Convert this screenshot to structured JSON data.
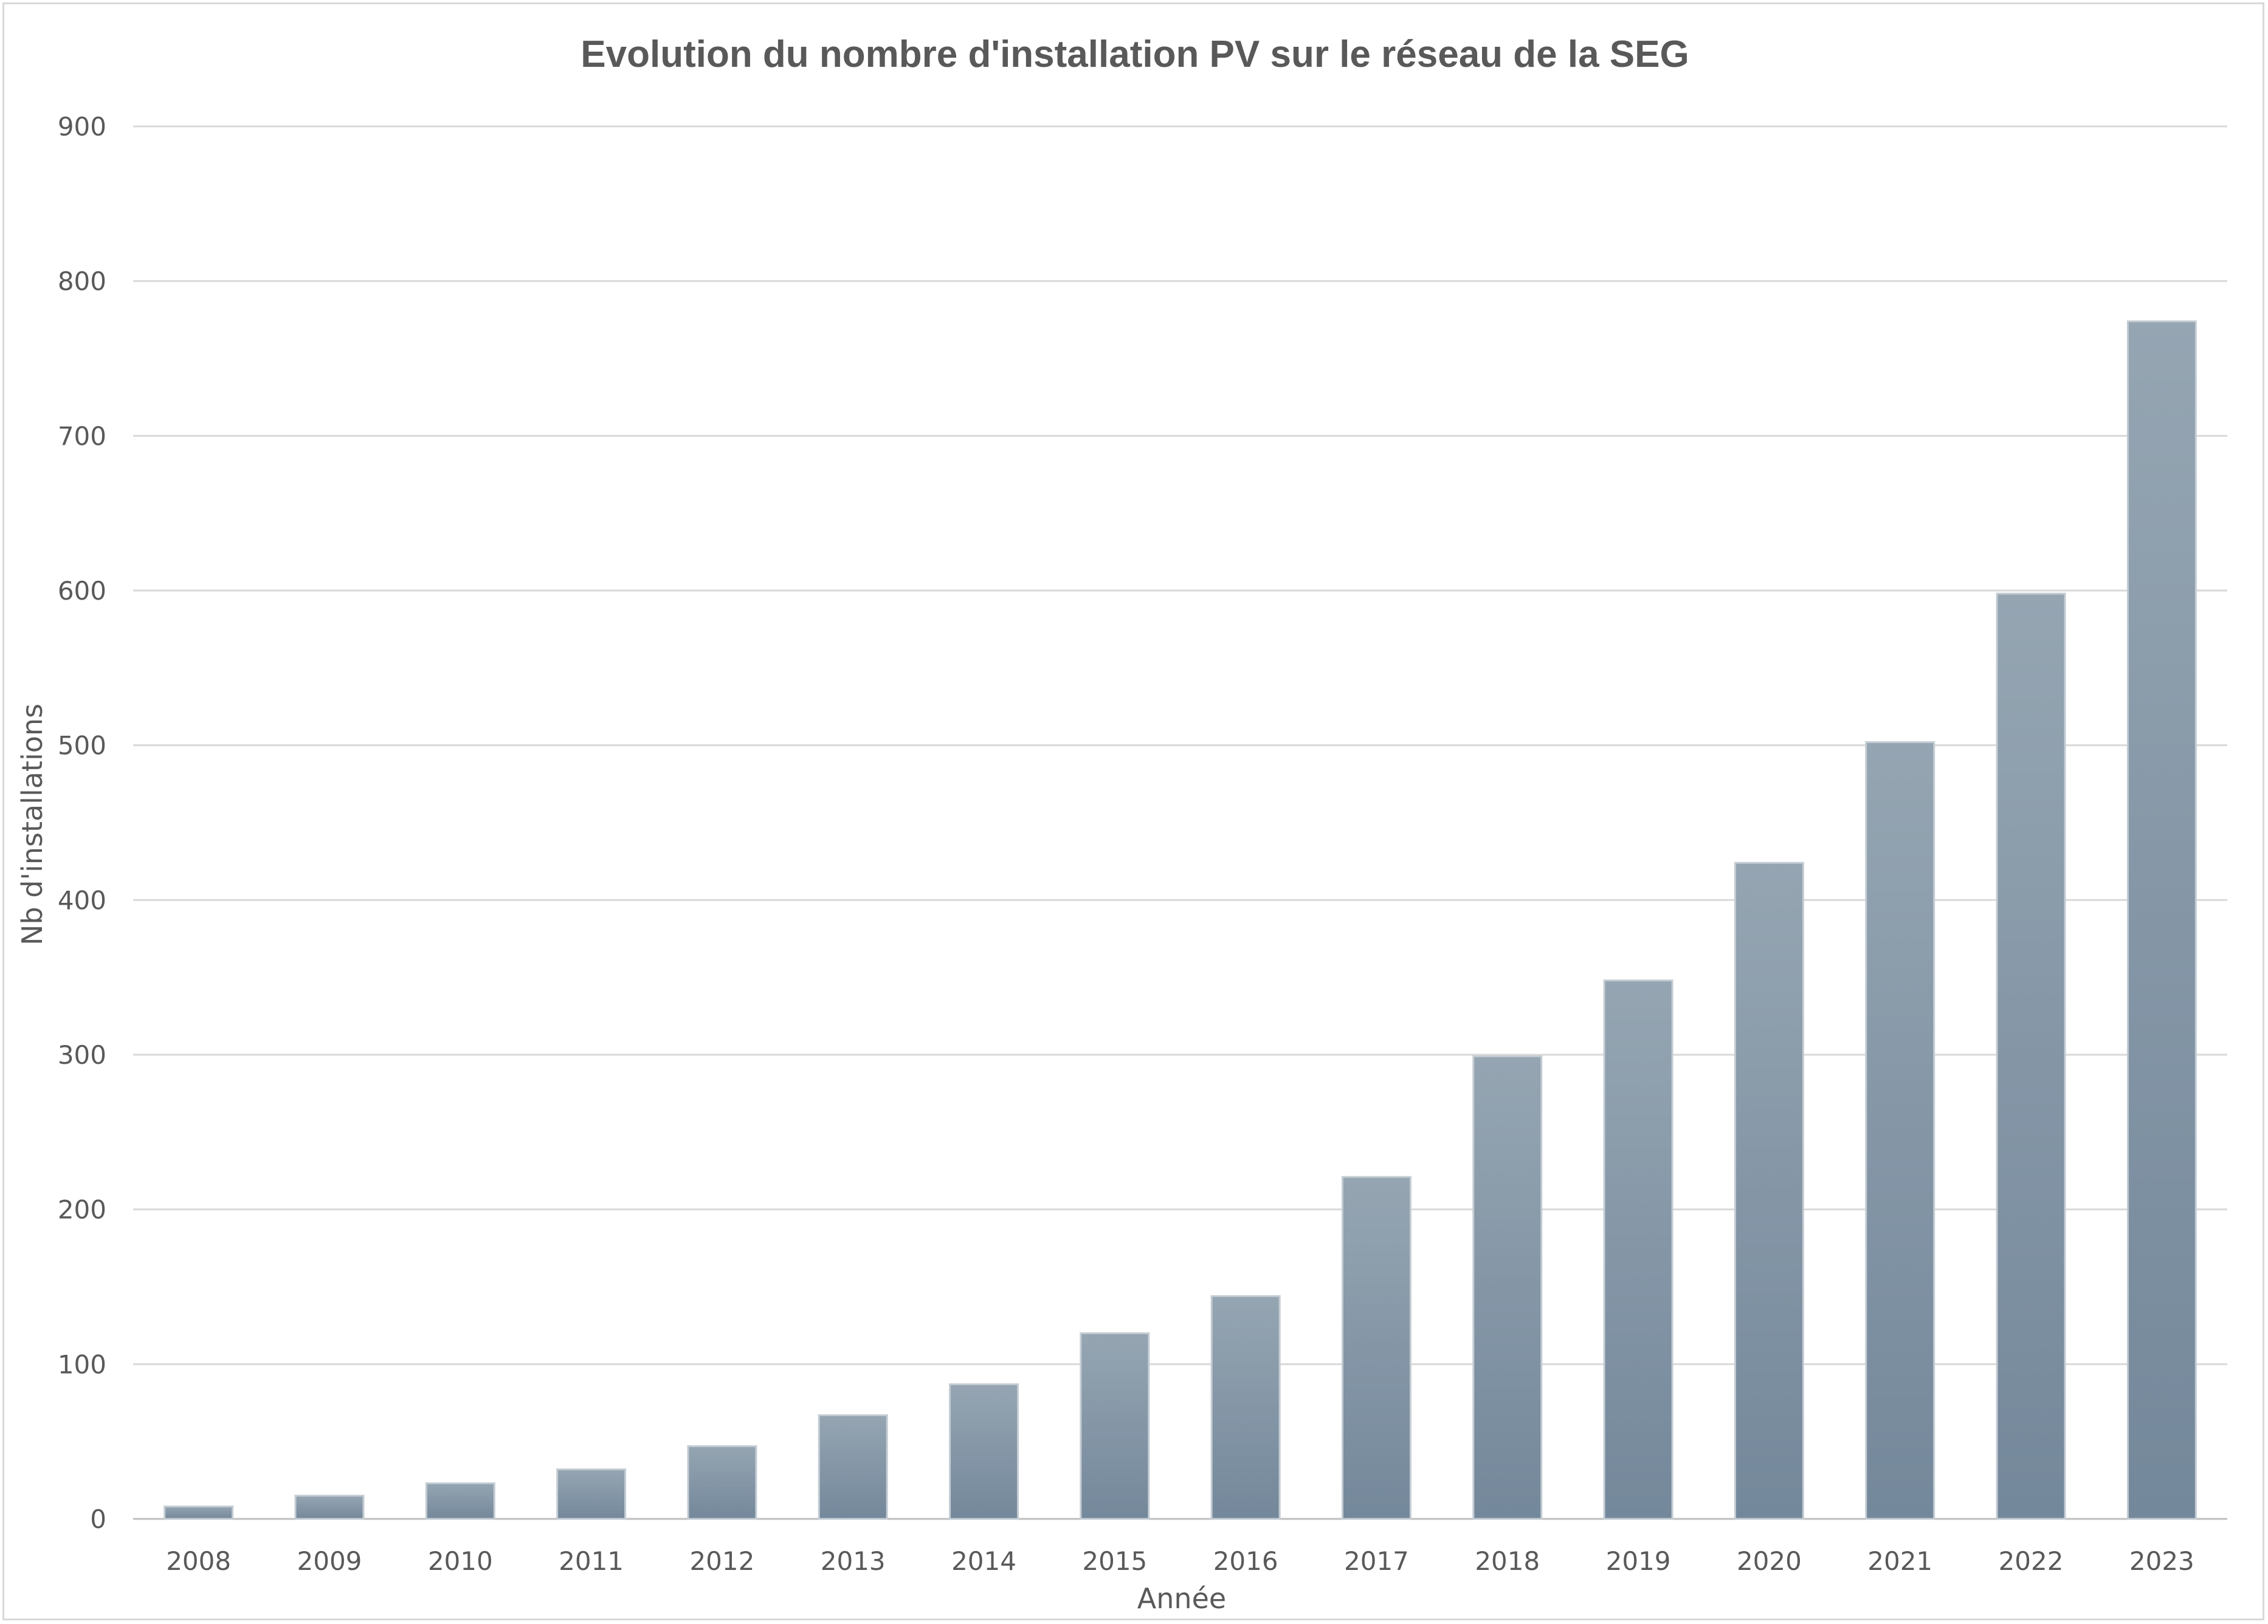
{
  "chart_data": {
    "type": "bar",
    "title": "Evolution du nombre d'installation  PV sur le réseau de la SEG",
    "xlabel": "Année",
    "ylabel": "Nb d'installations",
    "categories": [
      "2008",
      "2009",
      "2010",
      "2011",
      "2012",
      "2013",
      "2014",
      "2015",
      "2016",
      "2017",
      "2018",
      "2019",
      "2020",
      "2021",
      "2022",
      "2023"
    ],
    "values": [
      8,
      15,
      23,
      32,
      47,
      67,
      87,
      120,
      144,
      221,
      299,
      348,
      424,
      502,
      598,
      774
    ],
    "ylim": [
      0,
      900
    ],
    "yticks": [
      0,
      100,
      200,
      300,
      400,
      500,
      600,
      700,
      800,
      900
    ],
    "grid": true,
    "legend": "none",
    "colors": {
      "bar_top": "#95a5b2",
      "bar_bottom": "#74889b",
      "grid": "#d9d9d9",
      "text": "#595959"
    }
  }
}
